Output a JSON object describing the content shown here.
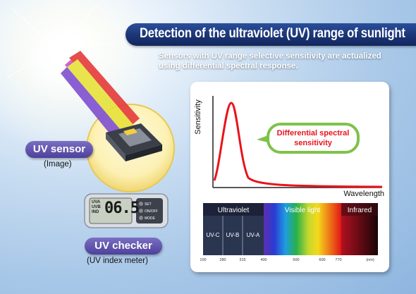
{
  "title": "Detection of the ultraviolet (UV) range of sunlight",
  "subtitle_lines": [
    "Sensors with UV range selective sensitivity are actualized",
    "using differential spectral response."
  ],
  "uv_sensor": {
    "label": "UV sensor",
    "caption": "(Image)"
  },
  "uv_checker": {
    "label": "UV checker",
    "caption": "(UV index meter)",
    "display_value": "06.5",
    "display_unit_lines": [
      "UVA",
      "UVB",
      "IND"
    ],
    "buttons": [
      "SET",
      "ON/OFF",
      "MODE"
    ]
  },
  "sensitivity_chart": {
    "ylabel": "Sensitivity",
    "xlabel": "Wavelength",
    "callout_lines": [
      "Differential spectral",
      "sensitivity"
    ]
  },
  "spectrum": {
    "bands": [
      "Ultraviolet",
      "Visible light",
      "Infrared"
    ],
    "sub_bands": [
      "UV-C",
      "UV-B",
      "UV-A"
    ],
    "ticks": [
      "100",
      "280",
      "315",
      "400",
      "500",
      "600",
      "770"
    ],
    "unit": "(nm)"
  },
  "colors": {
    "title_bg": "#1b3576",
    "curve": "#e8141c",
    "pill": "#5a4da8",
    "callout_border": "#7fc24a"
  }
}
